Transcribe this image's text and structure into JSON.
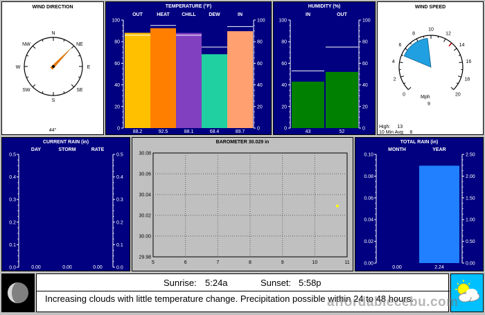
{
  "wind_direction": {
    "title": "WIND DIRECTION",
    "compass": [
      "N",
      "NE",
      "E",
      "SE",
      "S",
      "SW",
      "W",
      "NW"
    ],
    "value_label": "44°",
    "degrees": 44,
    "needle_color": "#e87a00"
  },
  "temperature": {
    "title": "TEMPERATURE  (°F)",
    "axis": [
      100,
      80,
      60,
      40,
      20,
      0
    ],
    "bars": [
      {
        "label": "OUT",
        "value": 88.2,
        "value_label": "88.2",
        "high": 86,
        "color": "#ffc000"
      },
      {
        "label": "HEAT",
        "value": 92.5,
        "value_label": "92.5",
        "high": 95,
        "color": "#ff8000"
      },
      {
        "label": "CHILL",
        "value": 88.1,
        "value_label": "88.1",
        "high": 86,
        "color": "#8040c0"
      },
      {
        "label": "DEW",
        "value": 68.4,
        "value_label": "68.4",
        "high": 75,
        "color": "#20d0a0"
      },
      {
        "label": "IN",
        "value": 89.7,
        "value_label": "89.7",
        "high": 94,
        "color": "#ffa070"
      }
    ]
  },
  "humidity": {
    "title": "HUMIDITY  (%)",
    "axis": [
      100,
      80,
      60,
      40,
      20,
      0
    ],
    "bars": [
      {
        "label": "IN",
        "value": 43,
        "value_label": "43",
        "high": 53,
        "color": "#008000"
      },
      {
        "label": "OUT",
        "value": 52,
        "value_label": "52",
        "high": 75,
        "color": "#008000"
      }
    ]
  },
  "wind_speed": {
    "title": "WIND SPEED",
    "ticks": [
      "0",
      "2",
      "4",
      "6",
      "8",
      "10",
      "12",
      "14",
      "16",
      "18",
      "20"
    ],
    "unit": "Mph",
    "value": 9,
    "value_label": "9",
    "high_label": "High:",
    "high_value": "13",
    "avg_label": "10 Min Avg:",
    "avg_value": "8",
    "gauge_color": "#20a0e0"
  },
  "current_rain": {
    "title": "CURRENT RAIN  (in)",
    "columns": [
      "DAY",
      "STORM",
      "RATE"
    ],
    "axis": [
      "0.5",
      "0.4",
      "0.3",
      "0.2",
      "0.1",
      "0.0"
    ],
    "values": [
      "0.00",
      "0.00",
      "0.00"
    ]
  },
  "barometer": {
    "title": "BAROMETER 30.029 in",
    "y_ticks": [
      "30.08",
      "30.06",
      "30.04",
      "30.02",
      "30.00",
      "29.98"
    ],
    "x_ticks": [
      "5",
      "6",
      "7",
      "8",
      "9",
      "10",
      "11"
    ],
    "point": {
      "x": 10.7,
      "y": 30.029
    },
    "point_color": "#ffff00"
  },
  "total_rain": {
    "title": "TOTAL RAIN  (in)",
    "columns": [
      "MONTH",
      "YEAR"
    ],
    "left_axis": [
      "0.10",
      "0.08",
      "0.06",
      "0.04",
      "0.02",
      "0.00"
    ],
    "right_axis": [
      "2.50",
      "2.00",
      "1.50",
      "1.00",
      "0.50",
      "0.00"
    ],
    "values": [
      "0.00",
      "2.24"
    ],
    "year_value": 2.24,
    "year_color": "#2080ff"
  },
  "status": {
    "sunrise_label": "Sunrise:",
    "sunrise_value": "5:24a",
    "sunset_label": "Sunset:",
    "sunset_value": "5:58p",
    "forecast": "Increasing clouds with little temperature change.  Precipitation possible within 24 to 48 hours."
  },
  "watermark": "affordablecebu.com"
}
